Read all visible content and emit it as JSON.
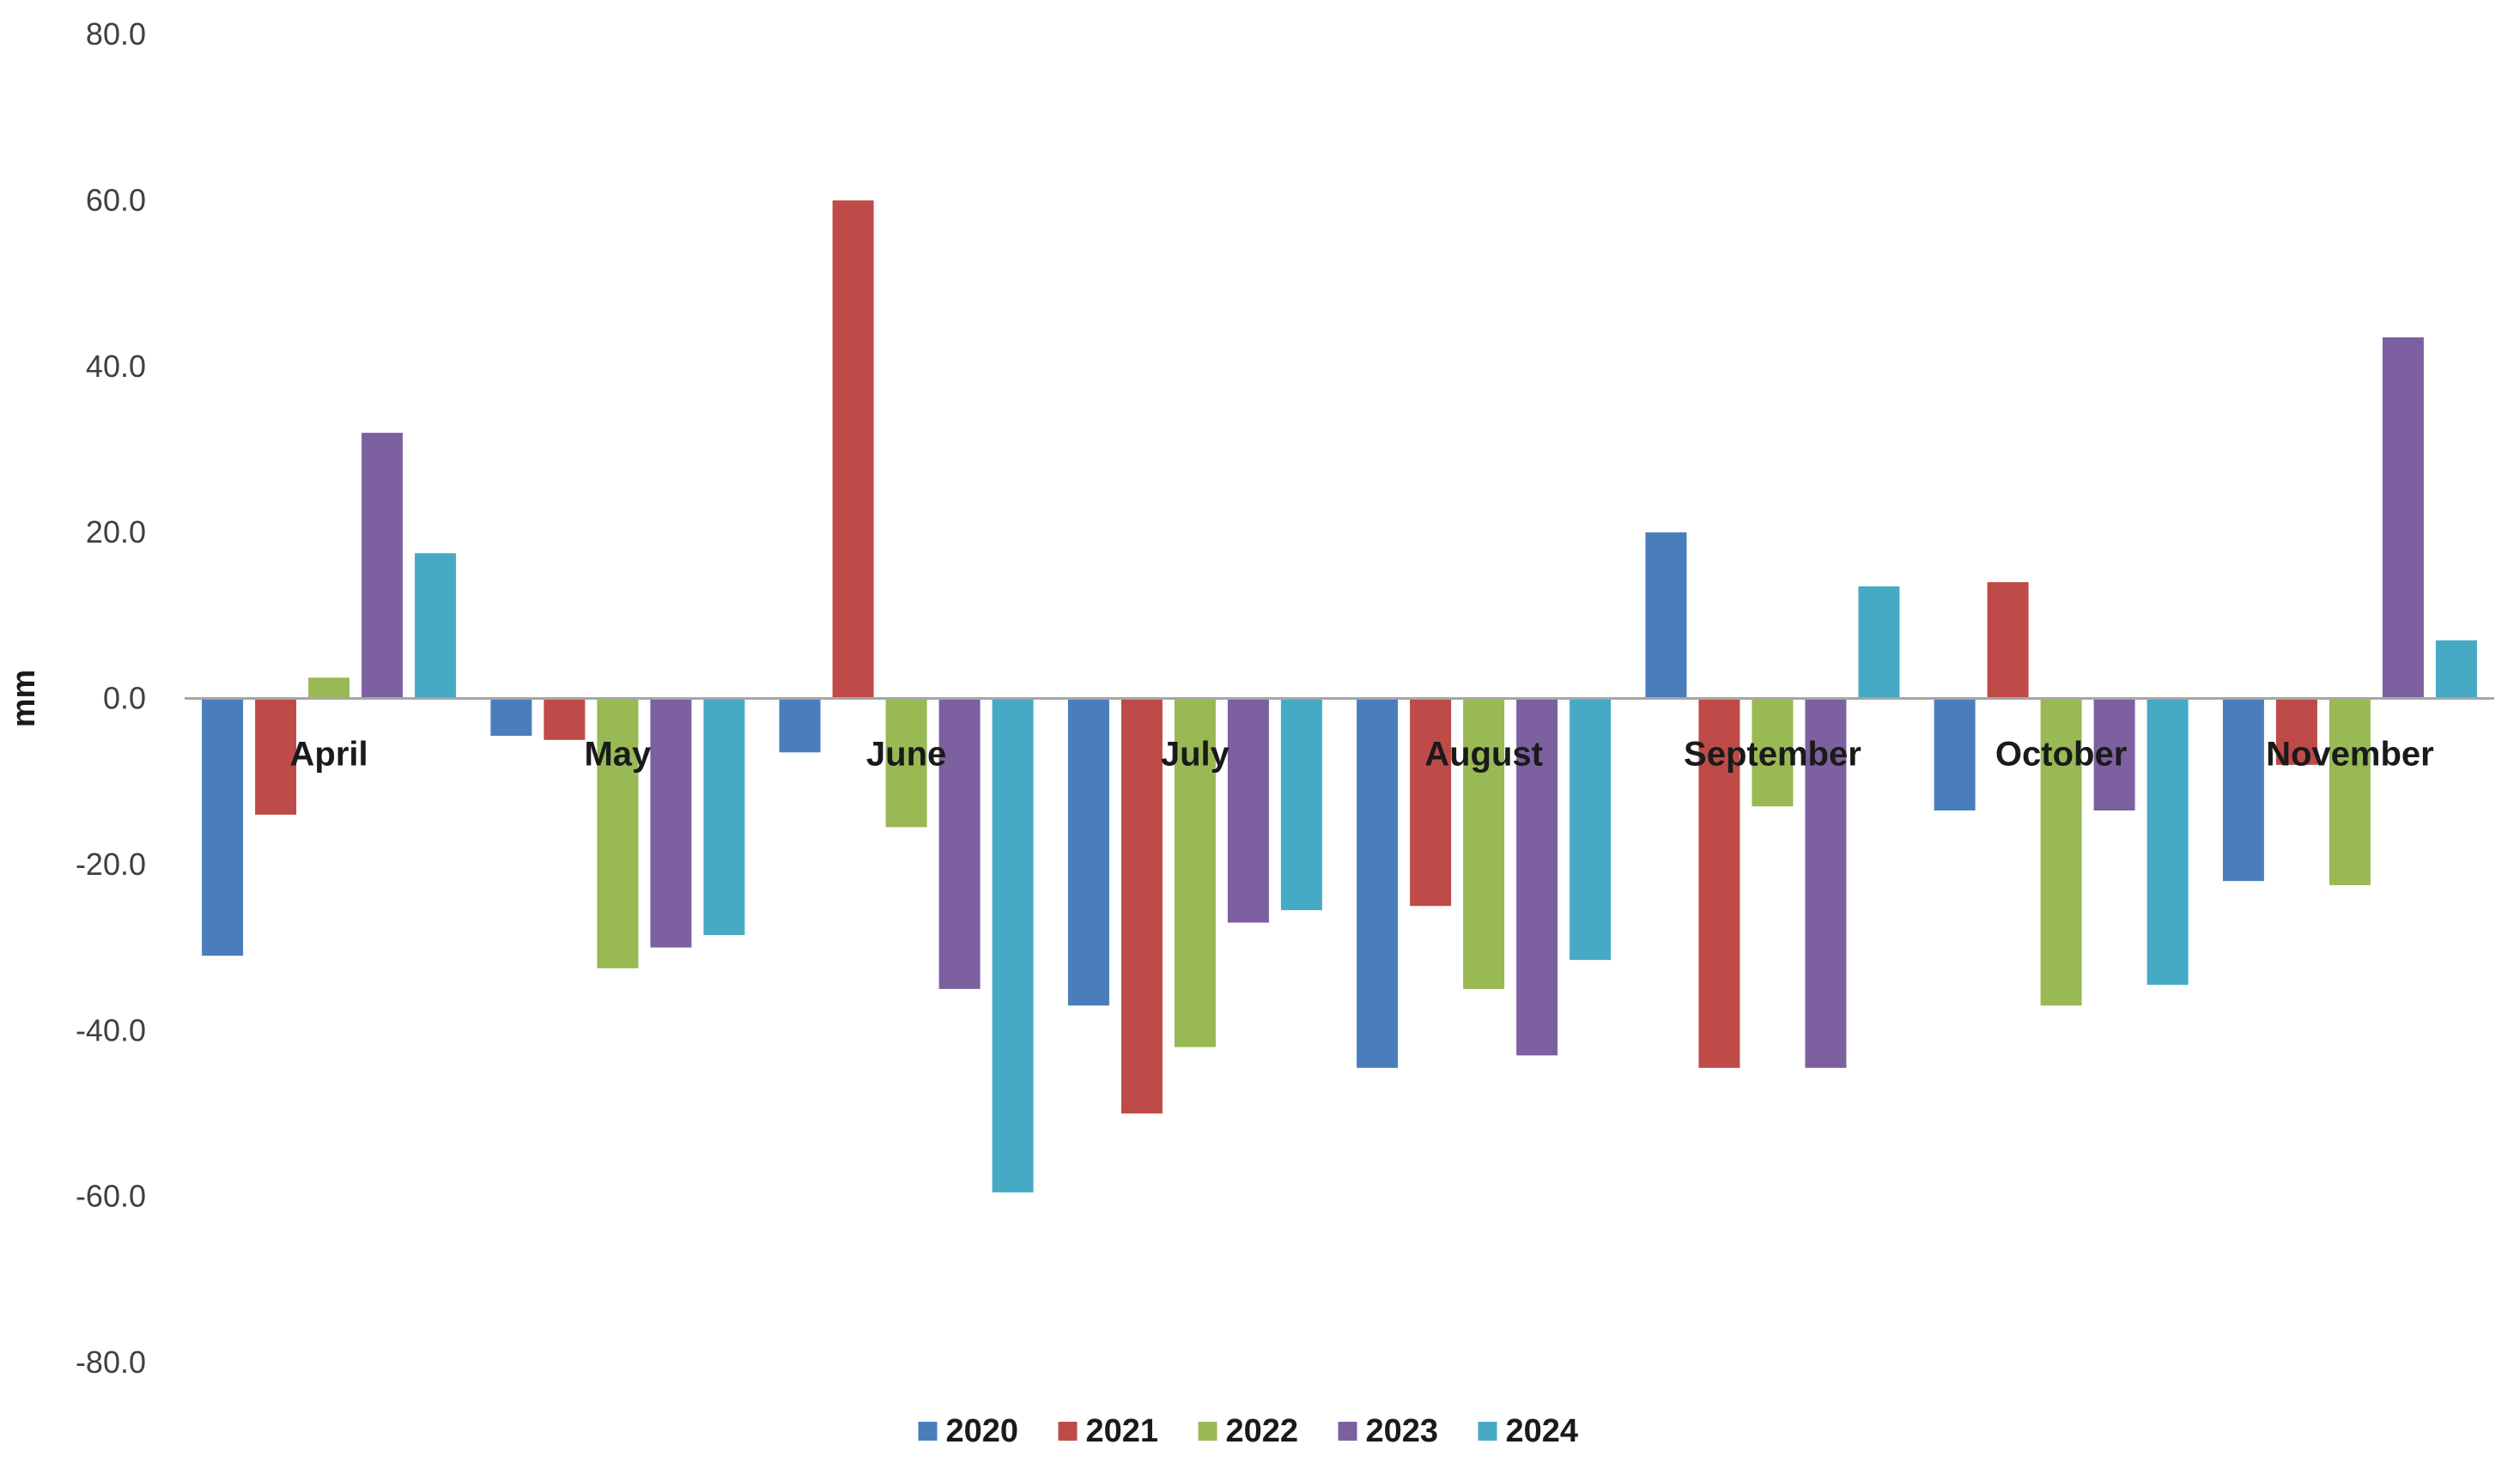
{
  "chart_data": {
    "type": "bar",
    "title": "",
    "xlabel": "",
    "ylabel": "mm",
    "ylim": [
      -80,
      80
    ],
    "yticks": [
      "80.0",
      "60.0",
      "40.0",
      "20.0",
      "0.0",
      "-20.0",
      "-40.0",
      "-60.0",
      "-80.0"
    ],
    "grid": false,
    "legend_position": "bottom",
    "categories": [
      "April",
      "May",
      "June",
      "July",
      "August",
      "September",
      "October",
      "November"
    ],
    "series": [
      {
        "name": "2020",
        "color": "#4a7ebb",
        "values": [
          -31.0,
          -4.5,
          -6.5,
          -37.0,
          -44.5,
          20.0,
          -13.5,
          -22.0
        ]
      },
      {
        "name": "2021",
        "color": "#be4b48",
        "values": [
          -14.0,
          -5.0,
          60.0,
          -50.0,
          -25.0,
          -44.5,
          14.0,
          -8.0
        ]
      },
      {
        "name": "2022",
        "color": "#98b954",
        "values": [
          2.5,
          -32.5,
          -15.5,
          -42.0,
          -35.0,
          -13.0,
          -37.0,
          -22.5
        ]
      },
      {
        "name": "2023",
        "color": "#7d60a0",
        "values": [
          32.0,
          -30.0,
          -35.0,
          -27.0,
          -43.0,
          -44.5,
          -13.5,
          43.5
        ]
      },
      {
        "name": "2024",
        "color": "#46aac5",
        "values": [
          17.5,
          -28.5,
          -59.5,
          -25.5,
          -31.5,
          13.5,
          -34.5,
          7.0
        ]
      }
    ]
  }
}
